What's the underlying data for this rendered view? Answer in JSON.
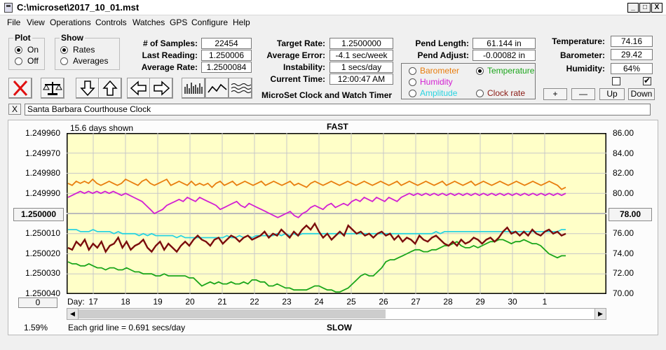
{
  "window": {
    "title": "C:\\microset\\2017_10_01.mst",
    "minimize": "_",
    "maximize": "□",
    "close": "X"
  },
  "menu": [
    "File",
    "View",
    "Operations",
    "Controls",
    "Watches",
    "GPS",
    "Configure",
    "Help"
  ],
  "plot_group": {
    "legend": "Plot",
    "options": [
      "On",
      "Off"
    ],
    "selected": "On"
  },
  "show_group": {
    "legend": "Show",
    "options": [
      "Rates",
      "Averages"
    ],
    "selected": "Rates"
  },
  "stats": {
    "samples_label": "# of Samples:",
    "samples": "22454",
    "last_label": "Last Reading:",
    "last": "1.250006",
    "avg_label": "Average Rate:",
    "avg": "1.2500084",
    "target_label": "Target Rate:",
    "target": "1.2500000",
    "error_label": "Average Error:",
    "error": "-4.1 sec/week",
    "instability_label": "Instability:",
    "instability": "1 secs/day",
    "time_label": "Current Time:",
    "time": "12:00:47 AM",
    "pend_length_label": "Pend Length:",
    "pend_length": "61.144 in",
    "pend_adjust_label": "Pend Adjust:",
    "pend_adjust": "-0.00082 in",
    "temp_label": "Temperature:",
    "temp": "74.16",
    "baro_label": "Barometer:",
    "baro": "29.42",
    "humid_label": "Humidity:",
    "humid": "64%"
  },
  "app_caption": "MicroSet Clock and Watch Timer",
  "sensor_group": {
    "options": [
      {
        "label": "Barometer",
        "color": "#e87d0d"
      },
      {
        "label": "Temperature",
        "color": "#1aa51a",
        "selected": true
      },
      {
        "label": "Humidity",
        "color": "#d21fd2"
      },
      {
        "label": "Amplitude",
        "color": "#29d3e0"
      },
      {
        "label": "Clock rate",
        "color": "#8a1a14"
      }
    ]
  },
  "scale_buttons": {
    "plus": "+",
    "minus": "—",
    "up": "Up",
    "down": "Down"
  },
  "watch_name": {
    "close": "X",
    "value": "Santa Barbara Courthouse Clock"
  },
  "chart": {
    "days_shown": "15.6 days shown",
    "top_label": "FAST",
    "bottom_label": "SLOW",
    "left_center_button": "1.250000",
    "right_center_button": "78.00",
    "bottom_left_button": "0",
    "day_label": "Day:",
    "grid_note": "Each grid line = 0.691 secs/day",
    "percent": "1.59%"
  },
  "chart_data": {
    "type": "line",
    "x_label": "Day:",
    "x_ticks": [
      "17",
      "18",
      "19",
      "20",
      "21",
      "22",
      "23",
      "24",
      "25",
      "26",
      "27",
      "28",
      "29",
      "30",
      "1"
    ],
    "y_left_ticks": [
      "1.249960",
      "1.249970",
      "1.249980",
      "1.249990",
      "1.250010",
      "1.250020",
      "1.250030",
      "1.250040"
    ],
    "y_left_range": [
      1.24996,
      1.25004
    ],
    "y_right_ticks": [
      "86.00",
      "84.00",
      "82.00",
      "80.00",
      "76.00",
      "74.00",
      "72.00",
      "70.00"
    ],
    "y_right_range": [
      70,
      86
    ],
    "series": [
      {
        "name": "Barometer",
        "color": "#e87d0d",
        "values": [
          1.249985,
          1.249986,
          1.249984,
          1.249985,
          1.249984,
          1.249985,
          1.249983,
          1.249985,
          1.249986,
          1.249985,
          1.249984,
          1.249985,
          1.249986,
          1.249985,
          1.249983,
          1.249984,
          1.249985,
          1.249986,
          1.249984,
          1.249983,
          1.249985,
          1.249986,
          1.249985,
          1.249984,
          1.249983,
          1.249986,
          1.249985,
          1.249984,
          1.249985,
          1.249986,
          1.249984,
          1.249986,
          1.249985,
          1.249986,
          1.249985,
          1.249987,
          1.249985,
          1.249984,
          1.249986,
          1.249985,
          1.249984,
          1.249986,
          1.249985,
          1.249984,
          1.249985,
          1.249986,
          1.249985,
          1.249984,
          1.249986,
          1.249985,
          1.249984,
          1.249985,
          1.249986,
          1.249985,
          1.249984,
          1.249986,
          1.249985,
          1.249986,
          1.249987,
          1.249985,
          1.249984,
          1.249985,
          1.249986,
          1.249985,
          1.249984,
          1.249985,
          1.249986,
          1.249985,
          1.249984,
          1.249985,
          1.249986,
          1.249985,
          1.249984,
          1.249985,
          1.249986,
          1.249985,
          1.249984,
          1.249985,
          1.249986,
          1.249985,
          1.249984,
          1.249986,
          1.249985,
          1.249984,
          1.249985,
          1.249986,
          1.249985,
          1.249984,
          1.249985,
          1.249986,
          1.249985,
          1.249984,
          1.249986,
          1.249985,
          1.249984,
          1.249985,
          1.249986,
          1.249985,
          1.249984,
          1.249986,
          1.249985,
          1.249984,
          1.249985,
          1.249986,
          1.249985,
          1.249984,
          1.249985,
          1.249986,
          1.249985,
          1.249984,
          1.249985,
          1.249986,
          1.249985,
          1.249984,
          1.249985,
          1.249986,
          1.249985,
          1.249984,
          1.249985,
          1.249986,
          1.249988,
          1.249987
        ]
      },
      {
        "name": "Humidity",
        "color": "#d21fd2",
        "values": [
          1.249992,
          1.249991,
          1.24999,
          1.249989,
          1.24999,
          1.249989,
          1.24999,
          1.249989,
          1.24999,
          1.249989,
          1.24999,
          1.249989,
          1.24999,
          1.249991,
          1.24999,
          1.249991,
          1.249992,
          1.249993,
          1.249994,
          1.249996,
          1.249998,
          1.25,
          1.249999,
          1.249998,
          1.249996,
          1.249995,
          1.249994,
          1.249993,
          1.249994,
          1.249992,
          1.249993,
          1.249994,
          1.249992,
          1.249993,
          1.249994,
          1.249995,
          1.249996,
          1.249998,
          1.249997,
          1.249996,
          1.249995,
          1.249994,
          1.249996,
          1.249997,
          1.249995,
          1.249996,
          1.249997,
          1.249998,
          1.249999,
          1.25,
          1.250001,
          1.250002,
          1.250001,
          1.25,
          1.249999,
          1.250001,
          1.250002,
          1.25,
          1.249999,
          1.249997,
          1.249996,
          1.249997,
          1.249998,
          1.249996,
          1.249995,
          1.249997,
          1.249996,
          1.249995,
          1.249996,
          1.249994,
          1.249993,
          1.249994,
          1.249992,
          1.249993,
          1.249994,
          1.249992,
          1.249993,
          1.249994,
          1.249992,
          1.249993,
          1.249994,
          1.249992,
          1.249991,
          1.24999,
          1.249991,
          1.24999,
          1.249991,
          1.24999,
          1.249991,
          1.24999,
          1.249991,
          1.24999,
          1.249991,
          1.24999,
          1.249991,
          1.24999,
          1.249991,
          1.24999,
          1.249991,
          1.24999,
          1.249991,
          1.24999,
          1.249991,
          1.24999,
          1.249991,
          1.24999,
          1.249991,
          1.24999,
          1.249991,
          1.24999,
          1.249991,
          1.24999,
          1.249991,
          1.24999,
          1.249991,
          1.24999,
          1.249991,
          1.24999,
          1.249991,
          1.24999,
          1.249991,
          1.24999
        ]
      },
      {
        "name": "Amplitude",
        "color": "#29d3e0",
        "values": [
          1.250008,
          1.250008,
          1.250008,
          1.250009,
          1.250009,
          1.250009,
          1.250008,
          1.250009,
          1.250009,
          1.250009,
          1.250009,
          1.25001,
          1.250009,
          1.25001,
          1.25001,
          1.25001,
          1.25001,
          1.250011,
          1.25001,
          1.250011,
          1.25001,
          1.250011,
          1.250011,
          1.250011,
          1.250011,
          1.250011,
          1.250012,
          1.250011,
          1.250012,
          1.250012,
          1.250012,
          1.250012,
          1.250012,
          1.250012,
          1.250012,
          1.250012,
          1.250012,
          1.250012,
          1.250011,
          1.250012,
          1.250012,
          1.250011,
          1.250012,
          1.250011,
          1.250012,
          1.250011,
          1.250011,
          1.250011,
          1.250011,
          1.250011,
          1.25001,
          1.250011,
          1.25001,
          1.250011,
          1.25001,
          1.250011,
          1.25001,
          1.25001,
          1.25001,
          1.25001,
          1.25001,
          1.25001,
          1.25001,
          1.25001,
          1.25001,
          1.25001,
          1.25001,
          1.25001,
          1.25001,
          1.25001,
          1.25001,
          1.25001,
          1.25001,
          1.25001,
          1.25001,
          1.25001,
          1.25001,
          1.25001,
          1.25001,
          1.25001,
          1.25001,
          1.25001,
          1.25001,
          1.25001,
          1.25001,
          1.25001,
          1.25001,
          1.25001,
          1.250009,
          1.25001,
          1.250009,
          1.250009,
          1.250009,
          1.250009,
          1.250009,
          1.250009,
          1.250009,
          1.250009,
          1.250009,
          1.250009,
          1.250009,
          1.250009,
          1.250009,
          1.250009,
          1.250009,
          1.250009,
          1.250009,
          1.250009,
          1.250009,
          1.250009,
          1.250009,
          1.250009,
          1.250009,
          1.250009,
          1.250009,
          1.250009,
          1.250009,
          1.250009,
          1.250008,
          1.250008
        ]
      },
      {
        "name": "Temperature",
        "color": "#1aa51a",
        "values": [
          1.250024,
          1.250025,
          1.250025,
          1.250026,
          1.250026,
          1.250025,
          1.250026,
          1.250027,
          1.250027,
          1.250028,
          1.250027,
          1.250027,
          1.250028,
          1.250028,
          1.250027,
          1.250028,
          1.250029,
          1.250029,
          1.25003,
          1.25003,
          1.25003,
          1.250031,
          1.250031,
          1.25003,
          1.250031,
          1.250031,
          1.250031,
          1.250031,
          1.250031,
          1.250032,
          1.250032,
          1.250034,
          1.250036,
          1.250035,
          1.250034,
          1.250035,
          1.250034,
          1.250035,
          1.250035,
          1.250034,
          1.250035,
          1.250035,
          1.250034,
          1.250035,
          1.250033,
          1.250033,
          1.250034,
          1.250034,
          1.250036,
          1.250036,
          1.250035,
          1.250036,
          1.250037,
          1.250037,
          1.250038,
          1.250038,
          1.250038,
          1.250038,
          1.250037,
          1.250036,
          1.250036,
          1.250037,
          1.250038,
          1.250038,
          1.250039,
          1.250039,
          1.250038,
          1.250037,
          1.250035,
          1.250033,
          1.250031,
          1.25003,
          1.250031,
          1.250031,
          1.250029,
          1.250027,
          1.250024,
          1.250023,
          1.250023,
          1.250022,
          1.250021,
          1.25002,
          1.250019,
          1.250018,
          1.250018,
          1.250019,
          1.250019,
          1.250018,
          1.250018,
          1.250017,
          1.250016,
          1.250016,
          1.250015,
          1.250014,
          1.250016,
          1.250017,
          1.250017,
          1.250016,
          1.250017,
          1.250016,
          1.250015,
          1.250014,
          1.250014,
          1.250013,
          1.250013,
          1.250014,
          1.250015,
          1.250014,
          1.250014,
          1.250013,
          1.250014,
          1.250015,
          1.250015,
          1.250016,
          1.250018,
          1.25002,
          1.250021,
          1.250022,
          1.250021,
          1.250021
        ]
      },
      {
        "name": "Clock rate",
        "color": "#7a0c0c",
        "values": [
          1.250017,
          1.250018,
          1.250014,
          1.250016,
          1.250013,
          1.250018,
          1.250015,
          1.250017,
          1.250014,
          1.250019,
          1.250016,
          1.250015,
          1.250012,
          1.250017,
          1.250014,
          1.250018,
          1.250016,
          1.250015,
          1.250013,
          1.250017,
          1.250019,
          1.250016,
          1.250014,
          1.250018,
          1.250015,
          1.250017,
          1.250019,
          1.250016,
          1.250014,
          1.250016,
          1.250013,
          1.250011,
          1.250013,
          1.250014,
          1.250016,
          1.250013,
          1.250012,
          1.250015,
          1.250013,
          1.250011,
          1.250012,
          1.250014,
          1.250012,
          1.250011,
          1.250013,
          1.250012,
          1.250011,
          1.250009,
          1.250012,
          1.25001,
          1.250011,
          1.250008,
          1.25001,
          1.250012,
          1.250009,
          1.250011,
          1.250008,
          1.250006,
          1.250008,
          1.250005,
          1.250009,
          1.250012,
          1.25001,
          1.250013,
          1.250011,
          1.250009,
          1.250011,
          1.250006,
          1.250008,
          1.25001,
          1.250009,
          1.250011,
          1.25001,
          1.250012,
          1.25001,
          1.250009,
          1.250011,
          1.25001,
          1.250013,
          1.250011,
          1.250014,
          1.250012,
          1.250013,
          1.250015,
          1.250011,
          1.250013,
          1.250014,
          1.250012,
          1.250011,
          1.250013,
          1.250015,
          1.250016,
          1.250014,
          1.250016,
          1.250013,
          1.250015,
          1.250014,
          1.250012,
          1.250013,
          1.250015,
          1.250013,
          1.250012,
          1.250014,
          1.250012,
          1.250009,
          1.250007,
          1.25001,
          1.250009,
          1.250011,
          1.250009,
          1.250011,
          1.250008,
          1.25001,
          1.250011,
          1.250009,
          1.250008,
          1.25001,
          1.250009,
          1.250011,
          1.25001
        ]
      }
    ]
  }
}
